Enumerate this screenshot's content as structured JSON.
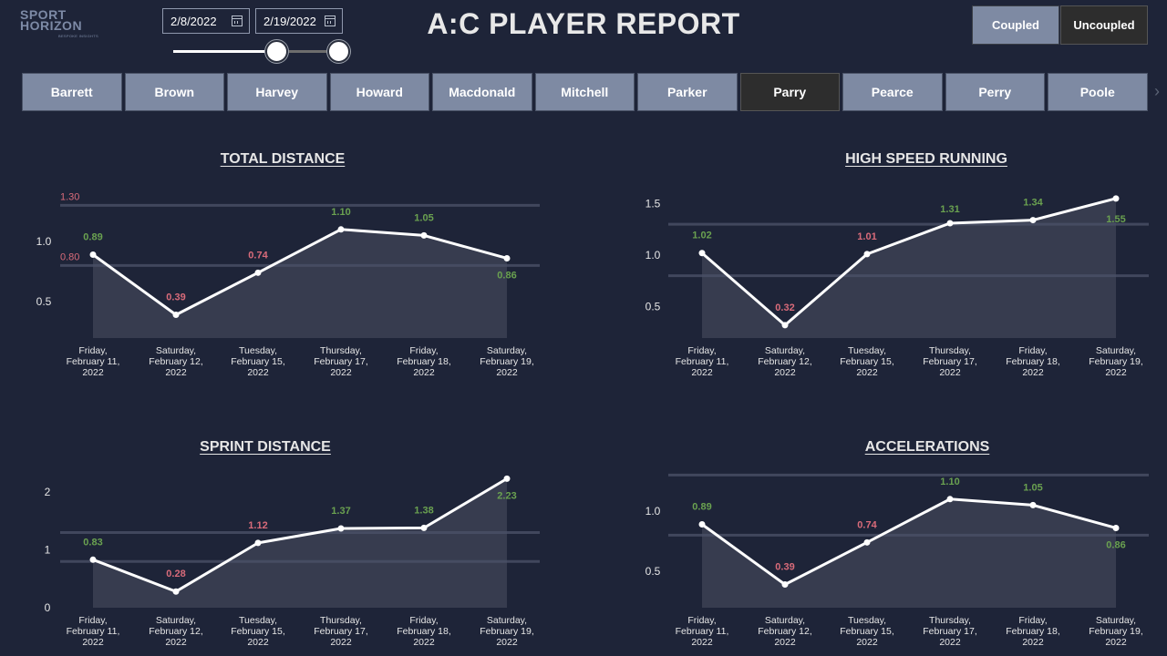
{
  "header": {
    "logo": {
      "line1": "SPORT",
      "line2": "HORIZON",
      "tagline": "BESPOKE INSIGHTS"
    },
    "title": "A:C PLAYER REPORT",
    "date_range": {
      "start": "2/8/2022",
      "end": "2/19/2022"
    },
    "toggle": {
      "coupled": "Coupled",
      "uncoupled": "Uncoupled",
      "selected": "Uncoupled"
    }
  },
  "players": {
    "items": [
      "Barrett",
      "Brown",
      "Harvey",
      "Howard",
      "Macdonald",
      "Mitchell",
      "Parker",
      "Parry",
      "Pearce",
      "Perry",
      "Poole"
    ],
    "selected": "Parry"
  },
  "colors": {
    "background": "#1e2438",
    "button": "#7e8aa3",
    "button_active": "#2d2d2d",
    "good": "#6aa150",
    "bad": "#d96b7a",
    "line": "#ffffff",
    "area": "#3a3f52",
    "band_line": "#3e4458"
  },
  "chart_data": [
    {
      "type": "line",
      "title": "TOTAL DISTANCE",
      "categories": [
        "Friday, February 11, 2022",
        "Saturday, February 12, 2022",
        "Tuesday, February 15, 2022",
        "Thursday, February 17, 2022",
        "Friday, February 18, 2022",
        "Saturday, February 19, 2022"
      ],
      "values": [
        0.89,
        0.39,
        0.74,
        1.1,
        1.05,
        0.86
      ],
      "value_labels": [
        "0.89",
        "0.39",
        "0.74",
        "1.10",
        "1.05",
        "0.86"
      ],
      "label_status": [
        "good",
        "bad",
        "bad",
        "good",
        "good",
        "good"
      ],
      "yticks": [
        "0.5",
        "1.0"
      ],
      "reference_lines": [
        {
          "value": 1.3,
          "label": "1.30"
        },
        {
          "value": 0.8,
          "label": "0.80"
        }
      ],
      "ylim": [
        0.2,
        1.35
      ]
    },
    {
      "type": "line",
      "title": "HIGH SPEED RUNNING",
      "categories": [
        "Friday, February 11, 2022",
        "Saturday, February 12, 2022",
        "Tuesday, February 15, 2022",
        "Thursday, February 17, 2022",
        "Friday, February 18, 2022",
        "Saturday, February 19, 2022"
      ],
      "values": [
        1.02,
        0.32,
        1.01,
        1.31,
        1.34,
        1.55
      ],
      "value_labels": [
        "1.02",
        "0.32",
        "1.01",
        "1.31",
        "1.34",
        "1.55"
      ],
      "label_status": [
        "good",
        "bad",
        "bad",
        "good",
        "good",
        "good"
      ],
      "yticks": [
        "0.5",
        "1.0",
        "1.5"
      ],
      "reference_lines": [
        {
          "value": 1.3
        },
        {
          "value": 0.8
        }
      ],
      "ylim": [
        0.2,
        1.6
      ]
    },
    {
      "type": "line",
      "title": "SPRINT DISTANCE",
      "categories": [
        "Friday, February 11, 2022",
        "Saturday, February 12, 2022",
        "Tuesday, February 15, 2022",
        "Thursday, February 17, 2022",
        "Friday, February 18, 2022",
        "Saturday, February 19, 2022"
      ],
      "values": [
        0.83,
        0.28,
        1.12,
        1.37,
        1.38,
        2.23
      ],
      "value_labels": [
        "0.83",
        "0.28",
        "1.12",
        "1.37",
        "1.38",
        "2.23"
      ],
      "label_status": [
        "good",
        "bad",
        "bad",
        "good",
        "good",
        "good"
      ],
      "yticks": [
        "0",
        "1",
        "2"
      ],
      "reference_lines": [
        {
          "value": 1.3
        },
        {
          "value": 0.8
        }
      ],
      "ylim": [
        0,
        2.3
      ]
    },
    {
      "type": "line",
      "title": "ACCELERATIONS",
      "categories": [
        "Friday, February 11, 2022",
        "Saturday, February 12, 2022",
        "Tuesday, February 15, 2022",
        "Thursday, February 17, 2022",
        "Friday, February 18, 2022",
        "Saturday, February 19, 2022"
      ],
      "values": [
        0.89,
        0.39,
        0.74,
        1.1,
        1.05,
        0.86
      ],
      "value_labels": [
        "0.89",
        "0.39",
        "0.74",
        "1.10",
        "1.05",
        "0.86"
      ],
      "label_status": [
        "good",
        "bad",
        "bad",
        "good",
        "good",
        "good"
      ],
      "yticks": [
        "0.5",
        "1.0"
      ],
      "reference_lines": [
        {
          "value": 1.3
        },
        {
          "value": 0.8
        }
      ],
      "ylim": [
        0.2,
        1.35
      ]
    }
  ]
}
